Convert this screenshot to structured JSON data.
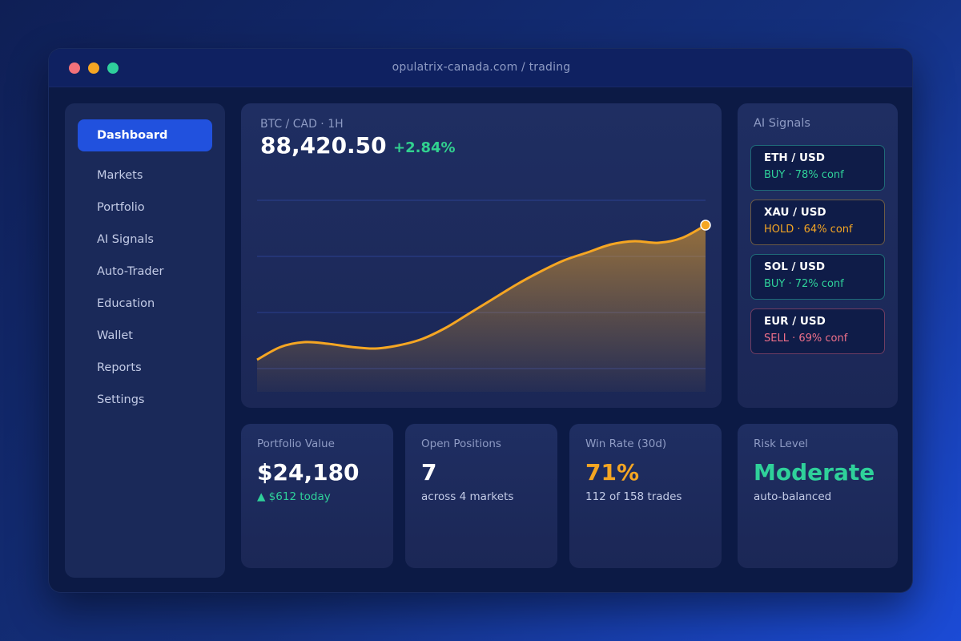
{
  "window": {
    "url": "opulatrix-canada.com / trading"
  },
  "sidebar": {
    "items": [
      {
        "label": "Dashboard",
        "active": true
      },
      {
        "label": "Markets"
      },
      {
        "label": "Portfolio"
      },
      {
        "label": "AI Signals"
      },
      {
        "label": "Auto-Trader"
      },
      {
        "label": "Education"
      },
      {
        "label": "Wallet"
      },
      {
        "label": "Reports"
      },
      {
        "label": "Settings"
      }
    ]
  },
  "chart": {
    "pair": "BTC / CAD · 1H",
    "price": "88,420.50",
    "change": "+2.84%",
    "line_color": "#f5a623"
  },
  "chart_data": {
    "type": "area",
    "title": "BTC / CAD · 1H",
    "xlabel": "",
    "ylabel": "",
    "series": [
      {
        "values": [
          0.35,
          0.43,
          0.46,
          0.45,
          0.43,
          0.42,
          0.44,
          0.48,
          0.55,
          0.64,
          0.73,
          0.82,
          0.9,
          0.97,
          1.02,
          1.07,
          1.09,
          1.08,
          1.11,
          1.19
        ]
      }
    ],
    "grid": true,
    "legend": "none"
  },
  "signals": {
    "title": "AI Signals",
    "items": [
      {
        "pair": "ETH / USD",
        "detail": "BUY · 78% conf",
        "action": "buy"
      },
      {
        "pair": "XAU / USD",
        "detail": "HOLD · 64% conf",
        "action": "hold"
      },
      {
        "pair": "SOL / USD",
        "detail": "BUY · 72% conf",
        "action": "buy"
      },
      {
        "pair": "EUR / USD",
        "detail": "SELL · 69% conf",
        "action": "sell"
      }
    ]
  },
  "stats": {
    "portfolio": {
      "label": "Portfolio Value",
      "value": "$24,180",
      "sub": "▲ $612 today"
    },
    "positions": {
      "label": "Open Positions",
      "value": "7",
      "sub": "across 4 markets"
    },
    "winrate": {
      "label": "Win Rate (30d)",
      "value": "71%",
      "sub": "112 of 158 trades"
    },
    "risk": {
      "label": "Risk Level",
      "value": "Moderate",
      "sub": "auto-balanced"
    }
  },
  "colors": {
    "accent": "#2151de",
    "positive": "#2fd19a",
    "warning": "#f5a623",
    "negative": "#f0708a"
  }
}
